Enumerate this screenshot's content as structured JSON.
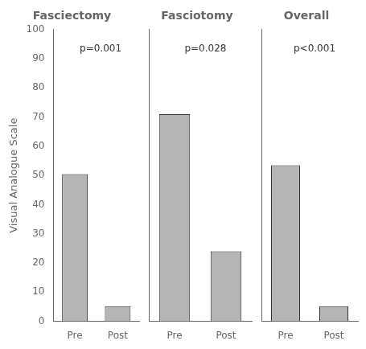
{
  "chart_data": [
    {
      "type": "bar",
      "title": "Fasciectomy",
      "annotation": "p=0.001",
      "categories": [
        "Pre",
        "Post"
      ],
      "values": [
        50.5,
        5.2
      ],
      "color": "#b5b5b5",
      "ylabel": "Visual Analogue Scale",
      "ylim": [
        0,
        100
      ],
      "yticks": [
        0,
        10,
        20,
        30,
        40,
        50,
        60,
        70,
        80,
        90,
        100
      ],
      "grid": false
    },
    {
      "type": "bar",
      "title": "Fasciotomy",
      "annotation": "p=0.028",
      "categories": [
        "Pre",
        "Post"
      ],
      "values": [
        71.0,
        24.0
      ],
      "color": "#b5b5b5",
      "ylim": [
        0,
        100
      ],
      "yticks": [
        0,
        10,
        20,
        30,
        40,
        50,
        60,
        70,
        80,
        90,
        100
      ],
      "grid": false,
      "tick_labels": "x"
    },
    {
      "type": "bar",
      "title": "Overall",
      "annotation": "p<0.001",
      "categories": [
        "Pre",
        "Post"
      ],
      "values": [
        53.5,
        5.2
      ],
      "color": "#b5b5b5",
      "ylim": [
        0,
        100
      ],
      "yticks": [
        0,
        10,
        20,
        30,
        40,
        50,
        60,
        70,
        80,
        90,
        100
      ],
      "grid": false,
      "tick_labels": "x"
    }
  ]
}
